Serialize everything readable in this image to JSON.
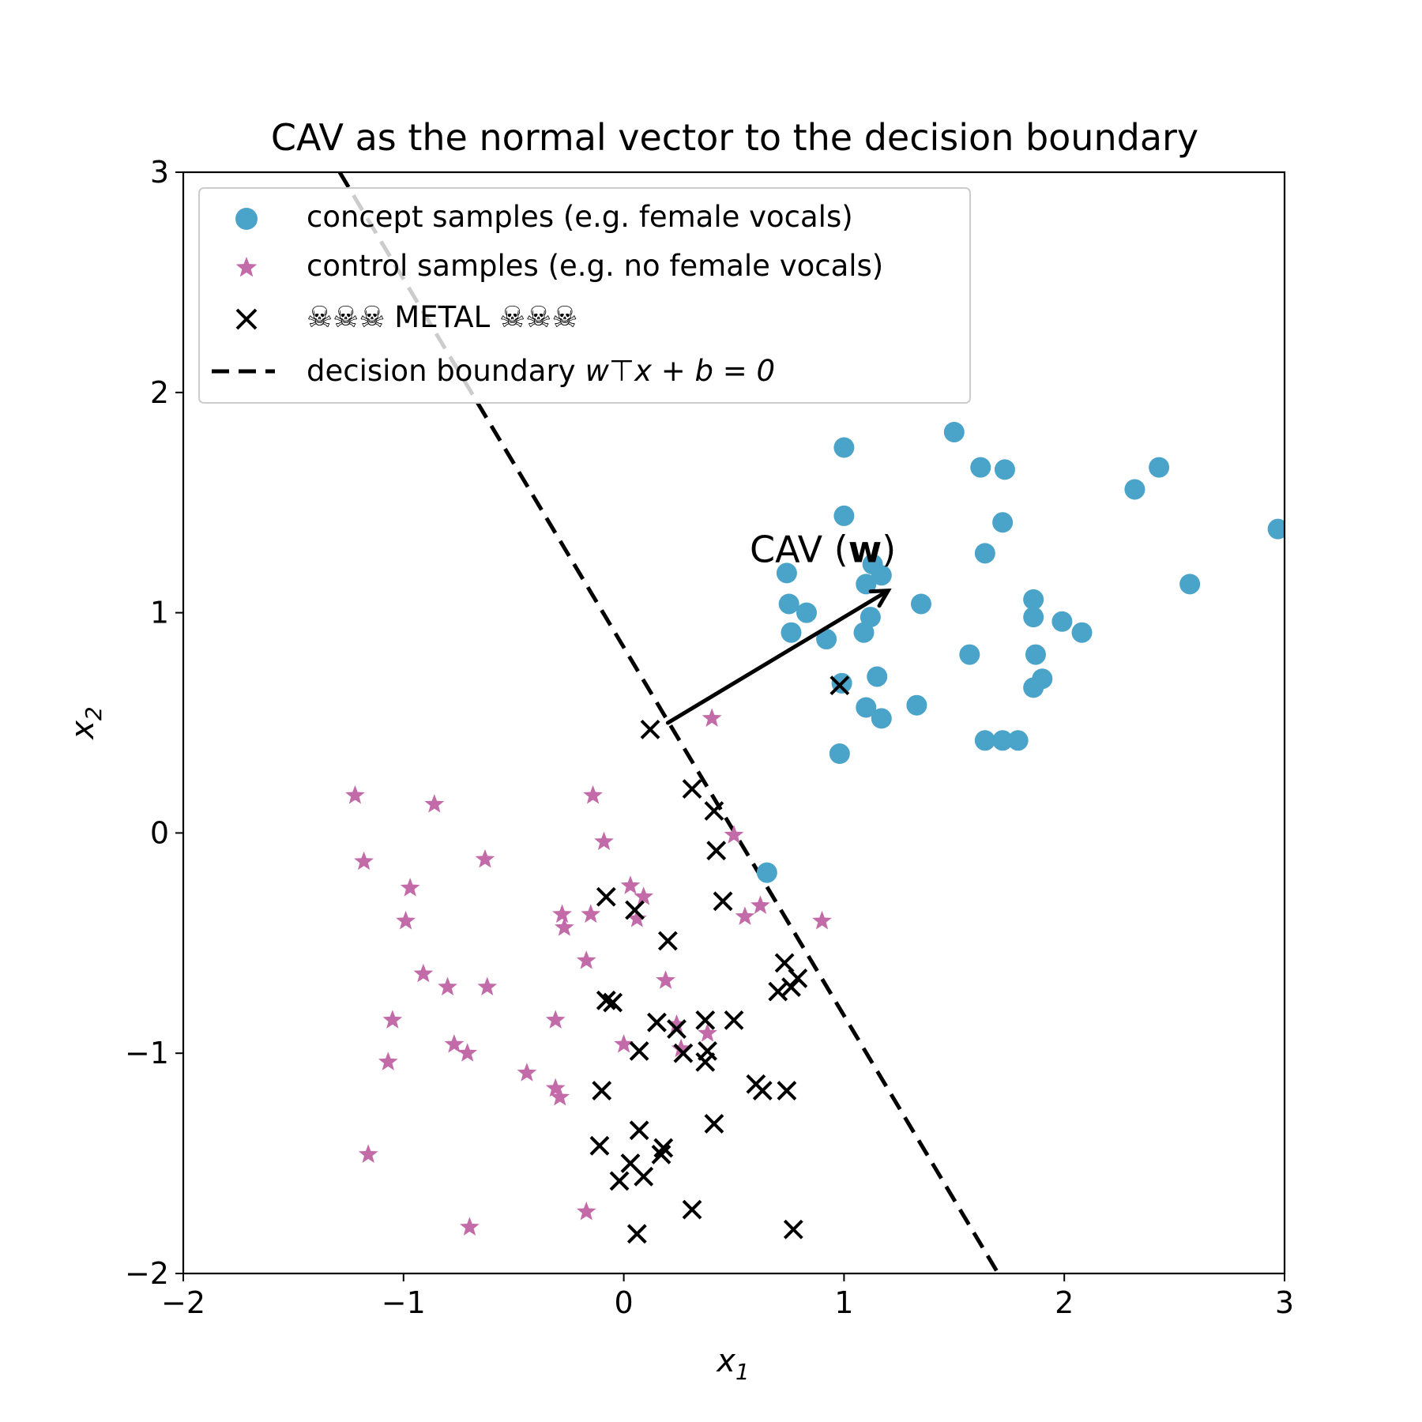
{
  "chart_data": {
    "type": "scatter",
    "title": "CAV as the normal vector to the decision boundary",
    "xlabel": "x",
    "xlabel_sub": "1",
    "ylabel": "x",
    "ylabel_sub": "2",
    "xlim": [
      -2,
      3
    ],
    "ylim": [
      -2,
      3
    ],
    "xticks": [
      -2,
      -1,
      0,
      1,
      2,
      3
    ],
    "yticks": [
      -2,
      -1,
      0,
      1,
      2,
      3
    ],
    "xtick_labels": [
      "−2",
      "−1",
      "0",
      "1",
      "2",
      "3"
    ],
    "ytick_labels": [
      "−2",
      "−1",
      "0",
      "1",
      "2",
      "3"
    ],
    "grid": false,
    "legend_position": "top-left",
    "series": [
      {
        "name": "concept samples (e.g. female vocals)",
        "marker": "circle",
        "color": "#4aa3c8",
        "points": [
          [
            1.0,
            1.75
          ],
          [
            1.5,
            1.82
          ],
          [
            1.62,
            1.66
          ],
          [
            1.73,
            1.65
          ],
          [
            2.43,
            1.66
          ],
          [
            2.32,
            1.56
          ],
          [
            2.97,
            1.38
          ],
          [
            1.0,
            1.44
          ],
          [
            1.72,
            1.41
          ],
          [
            1.64,
            1.27
          ],
          [
            0.74,
            1.18
          ],
          [
            1.13,
            1.22
          ],
          [
            1.1,
            1.13
          ],
          [
            1.17,
            1.17
          ],
          [
            2.57,
            1.13
          ],
          [
            0.75,
            1.04
          ],
          [
            0.83,
            1.0
          ],
          [
            1.12,
            0.98
          ],
          [
            1.35,
            1.04
          ],
          [
            1.86,
            1.06
          ],
          [
            1.86,
            0.98
          ],
          [
            1.99,
            0.96
          ],
          [
            2.08,
            0.91
          ],
          [
            0.76,
            0.91
          ],
          [
            0.92,
            0.88
          ],
          [
            1.09,
            0.91
          ],
          [
            1.57,
            0.81
          ],
          [
            1.87,
            0.81
          ],
          [
            0.99,
            0.68
          ],
          [
            1.15,
            0.71
          ],
          [
            1.9,
            0.7
          ],
          [
            1.86,
            0.66
          ],
          [
            1.1,
            0.57
          ],
          [
            1.17,
            0.52
          ],
          [
            1.33,
            0.58
          ],
          [
            0.98,
            0.36
          ],
          [
            1.64,
            0.42
          ],
          [
            1.72,
            0.42
          ],
          [
            1.79,
            0.42
          ],
          [
            0.65,
            -0.18
          ]
        ]
      },
      {
        "name": "control samples (e.g. no female vocals)",
        "marker": "star",
        "color": "#c26ba8",
        "points": [
          [
            0.4,
            0.52
          ],
          [
            -1.22,
            0.17
          ],
          [
            -0.86,
            0.13
          ],
          [
            -0.14,
            0.17
          ],
          [
            -1.18,
            -0.13
          ],
          [
            -0.63,
            -0.12
          ],
          [
            -0.09,
            -0.04
          ],
          [
            0.5,
            -0.01
          ],
          [
            -0.97,
            -0.25
          ],
          [
            0.03,
            -0.24
          ],
          [
            0.09,
            -0.29
          ],
          [
            -0.99,
            -0.4
          ],
          [
            -0.28,
            -0.37
          ],
          [
            -0.27,
            -0.43
          ],
          [
            -0.15,
            -0.37
          ],
          [
            0.06,
            -0.39
          ],
          [
            0.55,
            -0.38
          ],
          [
            0.62,
            -0.33
          ],
          [
            0.9,
            -0.4
          ],
          [
            -0.91,
            -0.64
          ],
          [
            -0.8,
            -0.7
          ],
          [
            -0.62,
            -0.7
          ],
          [
            -0.17,
            -0.58
          ],
          [
            0.19,
            -0.67
          ],
          [
            -1.05,
            -0.85
          ],
          [
            -0.31,
            -0.85
          ],
          [
            0.0,
            -0.96
          ],
          [
            -0.77,
            -0.96
          ],
          [
            -0.71,
            -1.0
          ],
          [
            0.24,
            -0.87
          ],
          [
            0.38,
            -0.91
          ],
          [
            0.26,
            -0.98
          ],
          [
            -1.07,
            -1.04
          ],
          [
            -0.44,
            -1.09
          ],
          [
            -0.31,
            -1.16
          ],
          [
            -0.29,
            -1.2
          ],
          [
            -1.16,
            -1.46
          ],
          [
            -0.17,
            -1.72
          ],
          [
            -0.7,
            -1.79
          ]
        ]
      },
      {
        "name": "☠☠☠ METAL ☠☠☠",
        "marker": "x",
        "color": "#000000",
        "points": [
          [
            0.98,
            0.67
          ],
          [
            0.12,
            0.47
          ],
          [
            0.31,
            0.2
          ],
          [
            0.41,
            0.1
          ],
          [
            0.42,
            -0.08
          ],
          [
            -0.08,
            -0.29
          ],
          [
            0.05,
            -0.35
          ],
          [
            0.45,
            -0.31
          ],
          [
            0.2,
            -0.49
          ],
          [
            0.73,
            -0.59
          ],
          [
            0.79,
            -0.66
          ],
          [
            0.7,
            -0.72
          ],
          [
            0.76,
            -0.7
          ],
          [
            -0.08,
            -0.76
          ],
          [
            -0.05,
            -0.77
          ],
          [
            0.15,
            -0.86
          ],
          [
            0.24,
            -0.89
          ],
          [
            0.37,
            -0.85
          ],
          [
            0.5,
            -0.85
          ],
          [
            0.07,
            -0.99
          ],
          [
            0.27,
            -1.0
          ],
          [
            0.38,
            -0.99
          ],
          [
            0.37,
            -1.04
          ],
          [
            -0.1,
            -1.17
          ],
          [
            0.6,
            -1.14
          ],
          [
            0.63,
            -1.17
          ],
          [
            0.74,
            -1.17
          ],
          [
            -0.11,
            -1.42
          ],
          [
            0.07,
            -1.35
          ],
          [
            0.41,
            -1.32
          ],
          [
            0.18,
            -1.43
          ],
          [
            0.17,
            -1.46
          ],
          [
            0.03,
            -1.5
          ],
          [
            -0.02,
            -1.58
          ],
          [
            0.09,
            -1.56
          ],
          [
            0.31,
            -1.71
          ],
          [
            0.77,
            -1.8
          ],
          [
            0.06,
            -1.82
          ]
        ]
      }
    ],
    "boundary": {
      "label": "decision boundary",
      "equation": "w⊤x + b = 0",
      "points": [
        [
          -1.29,
          3.0
        ],
        [
          1.7,
          -2.0
        ]
      ],
      "color": "#000000"
    },
    "cav": {
      "label": "CAV (",
      "label_bold": "w",
      "label_close": ")",
      "start": [
        0.2,
        0.5
      ],
      "end": [
        1.2,
        1.1
      ],
      "color": "#000000"
    }
  }
}
